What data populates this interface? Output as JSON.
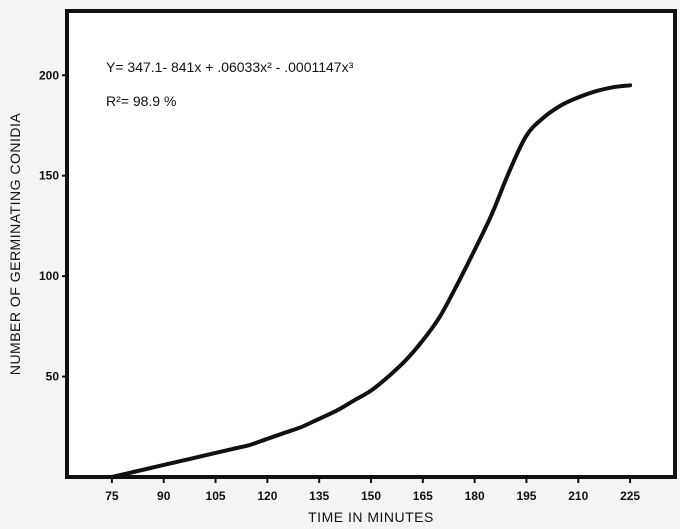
{
  "chart_data": {
    "type": "line",
    "title": "",
    "xlabel": "TIME IN MINUTES",
    "ylabel": "NUMBER OF GERMINATING CONIDIA",
    "xlim": [
      62,
      238
    ],
    "ylim": [
      0,
      232
    ],
    "xticks": [
      75,
      90,
      105,
      120,
      135,
      150,
      165,
      180,
      195,
      210,
      225
    ],
    "yticks": [
      50,
      100,
      150,
      200
    ],
    "grid": false,
    "annotations": [
      "Y= 347.1- 841x + .06033x² - .0001147x³",
      "R²= 98.9 %"
    ],
    "series": [
      {
        "x": [
          75,
          80,
          85,
          90,
          95,
          100,
          105,
          110,
          115,
          120,
          125,
          130,
          135,
          140,
          145,
          150,
          155,
          160,
          165,
          170,
          175,
          180,
          185,
          190,
          195,
          200,
          205,
          210,
          215,
          220,
          225
        ],
        "values": [
          0,
          2,
          4,
          6,
          8,
          10,
          12,
          14,
          16,
          19,
          22,
          25,
          29,
          33,
          38,
          43,
          50,
          58,
          68,
          80,
          96,
          113,
          131,
          152,
          170,
          179,
          185,
          189,
          192,
          194,
          195
        ],
        "color": "#111111"
      }
    ]
  }
}
